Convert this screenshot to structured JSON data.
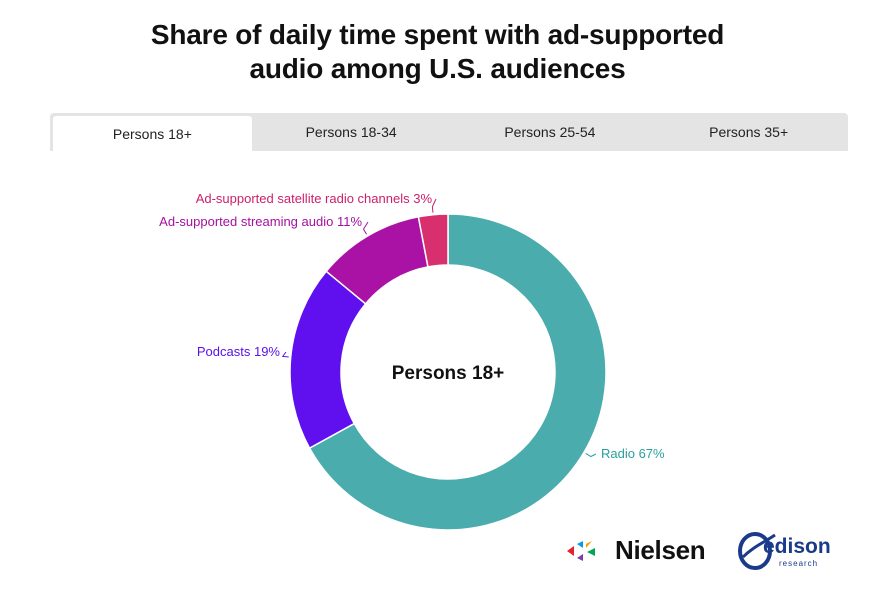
{
  "title_lines": [
    "Share of daily time spent with ad-supported",
    "audio among U.S. audiences"
  ],
  "tabs": [
    {
      "label": "Persons 18+",
      "active": true
    },
    {
      "label": "Persons 18-34",
      "active": false
    },
    {
      "label": "Persons 25-54",
      "active": false
    },
    {
      "label": "Persons 35+",
      "active": false
    }
  ],
  "chart_data": {
    "type": "pie",
    "style": "donut",
    "center_label": "Persons 18+",
    "slices": [
      {
        "label": "Radio",
        "value": 67,
        "color": "#4aacad"
      },
      {
        "label": "Podcasts",
        "value": 19,
        "color": "#6010ee"
      },
      {
        "label": "Ad-supported streaming audio",
        "value": 11,
        "color": "#aa12a6"
      },
      {
        "label": "Ad-supported satellite radio channels",
        "value": 3,
        "color": "#d8306e"
      }
    ],
    "data_labels": [
      "Radio 67%",
      "Podcasts 19%",
      "Ad-supported streaming audio 11%",
      "Ad-supported satellite radio channels 3%"
    ]
  },
  "logos": {
    "nielsen": "Nielsen",
    "edison": "edison",
    "edison_sub": "research",
    "nielsen_colors": [
      "#e3232c",
      "#009fe3",
      "#7a3fa0",
      "#f5a000",
      "#00a651"
    ]
  }
}
